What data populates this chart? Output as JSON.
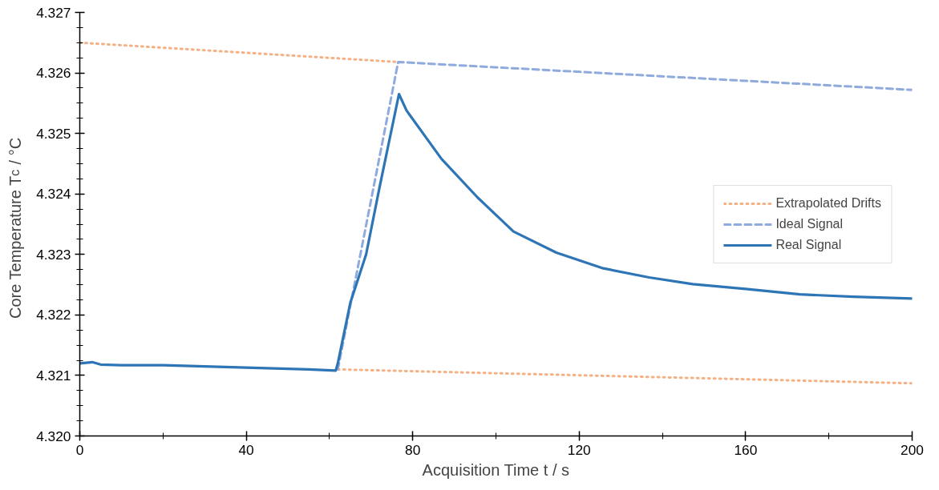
{
  "chart_data": {
    "type": "line",
    "xlabel": "Acquisition Time t / s",
    "ylabel": "Core Temperature T$_{c}$ / °C",
    "xlim": [
      0,
      200
    ],
    "ylim": [
      4.32,
      4.327
    ],
    "xticks": [
      0,
      {
        "value": 20,
        "label": null
      },
      40,
      {
        "value": 60,
        "label": null
      },
      80,
      {
        "value": 100,
        "label": null
      },
      120,
      {
        "value": 140,
        "label": null
      },
      160,
      {
        "value": 180,
        "label": null
      },
      200
    ],
    "yticks": [
      {
        "value": 4.32,
        "label": "4.320"
      },
      {
        "value": 4.32025,
        "label": null
      },
      {
        "value": 4.3205,
        "label": null
      },
      {
        "value": 4.32075,
        "label": null
      },
      {
        "value": 4.321,
        "label": "4.321"
      },
      {
        "value": 4.32125,
        "label": null
      },
      {
        "value": 4.3215,
        "label": null
      },
      {
        "value": 4.32175,
        "label": null
      },
      {
        "value": 4.322,
        "label": "4.322"
      },
      {
        "value": 4.32225,
        "label": null
      },
      {
        "value": 4.3225,
        "label": null
      },
      {
        "value": 4.32275,
        "label": null
      },
      {
        "value": 4.323,
        "label": "4.323"
      },
      {
        "value": 4.32325,
        "label": null
      },
      {
        "value": 4.3235,
        "label": null
      },
      {
        "value": 4.32375,
        "label": null
      },
      {
        "value": 4.324,
        "label": "4.324"
      },
      {
        "value": 4.32425,
        "label": null
      },
      {
        "value": 4.3245,
        "label": null
      },
      {
        "value": 4.32475,
        "label": null
      },
      {
        "value": 4.325,
        "label": "4.325"
      },
      {
        "value": 4.32525,
        "label": null
      },
      {
        "value": 4.3255,
        "label": null
      },
      {
        "value": 4.32575,
        "label": null
      },
      {
        "value": 4.326,
        "label": "4.326"
      },
      {
        "value": 4.32625,
        "label": null
      },
      {
        "value": 4.3265,
        "label": null
      },
      {
        "value": 4.32675,
        "label": null
      },
      {
        "value": 4.327,
        "label": "4.327"
      }
    ],
    "grid": false,
    "legend": "right",
    "series": [
      {
        "name": "Extrapolated Drifts",
        "color": "#f4b183",
        "line_style": "dotted",
        "x": [
          0,
          76.5,
          null,
          62,
          200
        ],
        "values": [
          4.3265,
          4.32618,
          null,
          4.3211,
          4.32087
        ]
      },
      {
        "name": "Ideal Signal",
        "color": "#8faadc",
        "line_style": "dashed",
        "x": [
          62,
          76.5,
          200
        ],
        "values": [
          4.3211,
          4.32618,
          4.32572
        ]
      },
      {
        "name": "Real Signal",
        "color": "#2e75b6",
        "line_style": "solid",
        "x": [
          0,
          3,
          5,
          10,
          20,
          30,
          40,
          50,
          55,
          61.5,
          62,
          65,
          68.8,
          72,
          76.7,
          78.5,
          86.9,
          95.6,
          104.2,
          114.5,
          125.8,
          136.8,
          147.3,
          160,
          173,
          186,
          200
        ],
        "values": [
          4.3212,
          4.32122,
          4.32118,
          4.32117,
          4.32117,
          4.32115,
          4.32113,
          4.32111,
          4.3211,
          4.32108,
          4.3212,
          4.3222,
          4.323,
          4.3241,
          4.32565,
          4.32538,
          4.32458,
          4.32394,
          4.32338,
          4.32303,
          4.32277,
          4.32262,
          4.32251,
          4.32243,
          4.32234,
          4.3223,
          4.32227
        ]
      }
    ]
  }
}
